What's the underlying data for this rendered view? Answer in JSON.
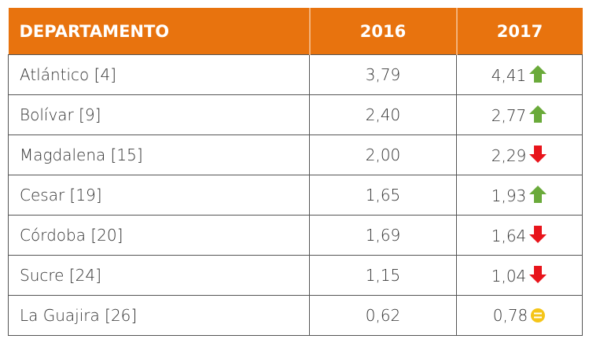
{
  "table": {
    "header": [
      "DEPARTAMENTO",
      "2016",
      "2017"
    ],
    "rows": [
      [
        "Atlántico [4]",
        "3,79",
        "4,41"
      ],
      [
        "Bolívar [9]",
        "2,40",
        "2,77"
      ],
      [
        "Magdalena [15]",
        "2,00",
        "2,29"
      ],
      [
        "Cesar [19]",
        "1,65",
        "1,93"
      ],
      [
        "Córdoba [20]",
        "1,69",
        "1,64"
      ],
      [
        "Sucre [24]",
        "1,15",
        "1,04"
      ],
      [
        "La Guajira [26]",
        "0,62",
        "0,78"
      ]
    ]
  }
}
